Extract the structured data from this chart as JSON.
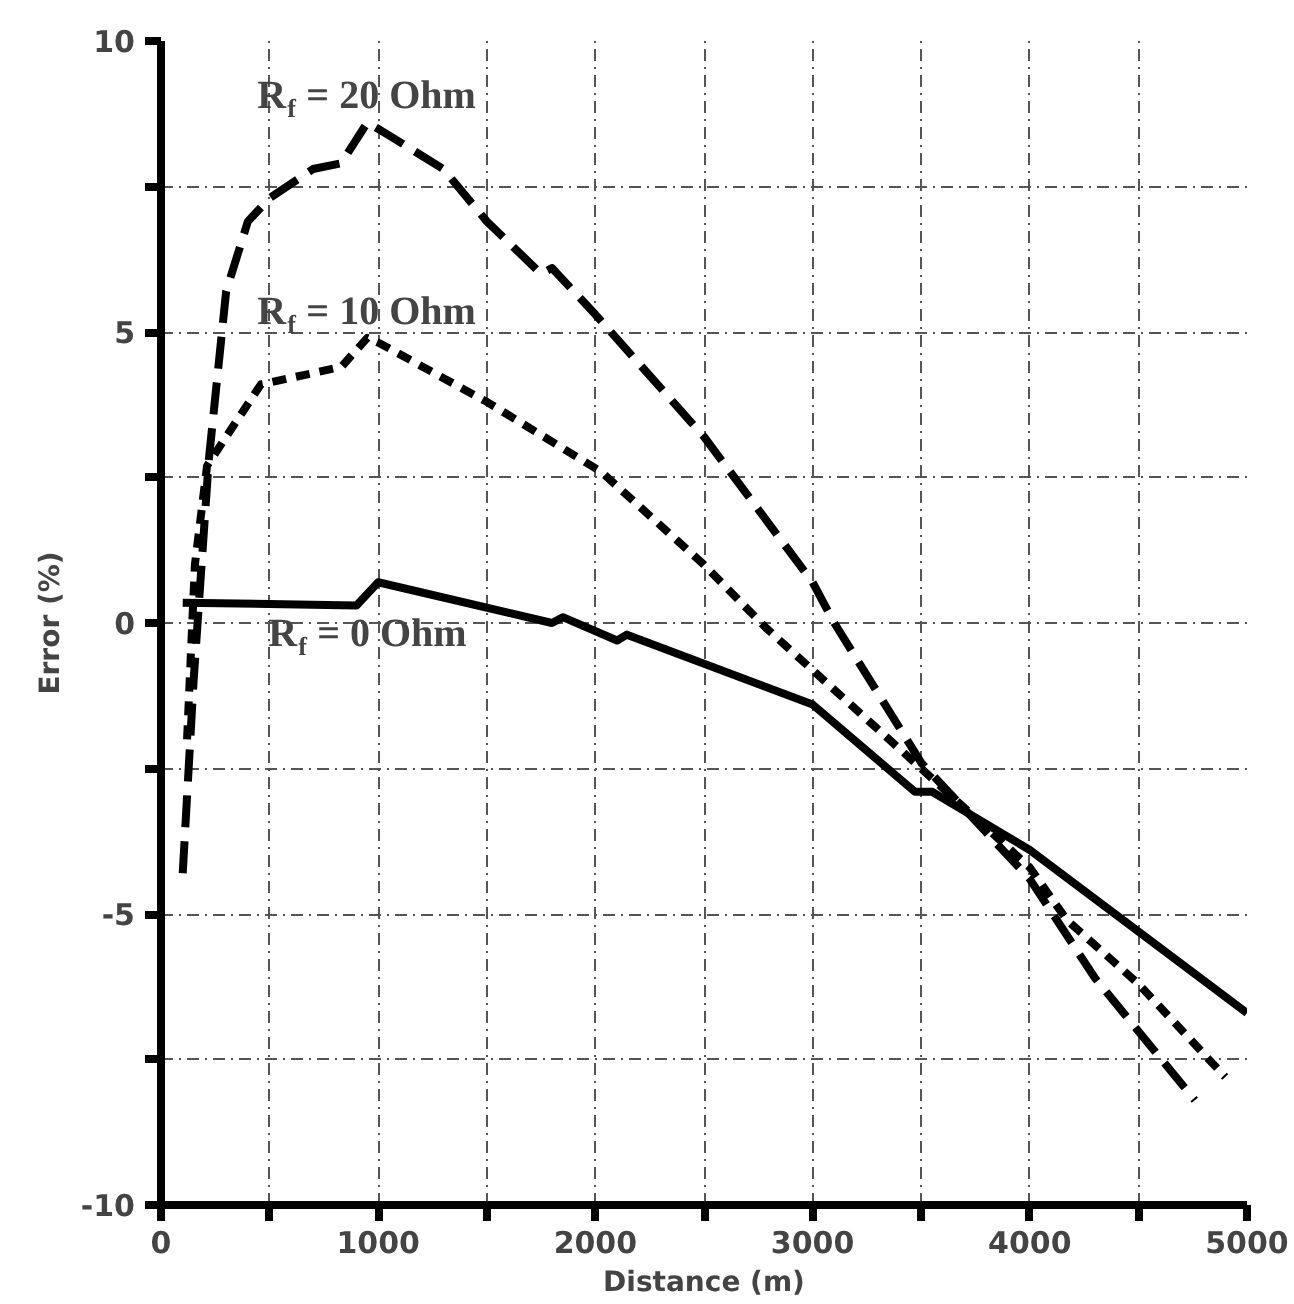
{
  "chart_data": {
    "type": "line",
    "xlabel": "Distance (m)",
    "ylabel": "Error (%)",
    "xlim": [
      0,
      5000
    ],
    "ylim": [
      -10,
      10
    ],
    "xticks": [
      0,
      {
        "value": 500,
        "label": null
      },
      1000,
      {
        "value": 1500,
        "label": null
      },
      2000,
      {
        "value": 2500,
        "label": null
      },
      3000,
      {
        "value": 3500,
        "label": null
      },
      4000,
      {
        "value": 4500,
        "label": null
      },
      5000
    ],
    "yticks": [
      -10,
      {
        "value": -7.5,
        "label": null
      },
      -5,
      {
        "value": -2.5,
        "label": null
      },
      0,
      {
        "value": 2.5,
        "label": null
      },
      5,
      {
        "value": 7.5,
        "label": null
      },
      10
    ],
    "grid": true,
    "marker": "none",
    "series": [
      {
        "name": "R$_{f}$ = 20 Ohm",
        "color": "#000000",
        "line_style": "dashed",
        "x": [
          100,
          150,
          220,
          300,
          400,
          500,
          700,
          830,
          950,
          1040,
          1300,
          1500,
          1750,
          1800,
          2000,
          2500,
          3000,
          3100,
          3500,
          3800,
          4000,
          4300,
          4760
        ],
        "values": [
          -4.3,
          -1.0,
          2.8,
          5.7,
          6.9,
          7.3,
          7.8,
          7.9,
          8.6,
          8.4,
          7.8,
          6.9,
          6.0,
          6.1,
          5.3,
          3.2,
          0.7,
          0.0,
          -2.4,
          -3.6,
          -4.4,
          -6.1,
          -8.2
        ]
      },
      {
        "name": "R$_{f}$ = 10 Ohm",
        "color": "#000000",
        "line_style": "dotted",
        "x": [
          120,
          156,
          212,
          300,
          460,
          830,
          950,
          1010,
          1500,
          2026,
          2500,
          2790,
          3500,
          4000,
          4170,
          4500,
          4900
        ],
        "values": [
          -2.0,
          1.0,
          2.7,
          3.2,
          4.1,
          4.4,
          4.9,
          4.8,
          3.8,
          2.6,
          1.0,
          -0.1,
          -2.5,
          -4.2,
          -5.1,
          -6.2,
          -7.8
        ]
      },
      {
        "name": "R$_{f}$ = 0 Ohm",
        "color": "#000000",
        "line_style": "solid",
        "x": [
          100,
          900,
          1000,
          1800,
          1850,
          2100,
          2145,
          3000,
          3471,
          3550,
          4000,
          5000
        ],
        "values": [
          0.35,
          0.3,
          0.7,
          0.0,
          0.1,
          -0.3,
          -0.2,
          -1.4,
          -2.9,
          -2.9,
          -3.9,
          -6.7
        ]
      }
    ]
  }
}
